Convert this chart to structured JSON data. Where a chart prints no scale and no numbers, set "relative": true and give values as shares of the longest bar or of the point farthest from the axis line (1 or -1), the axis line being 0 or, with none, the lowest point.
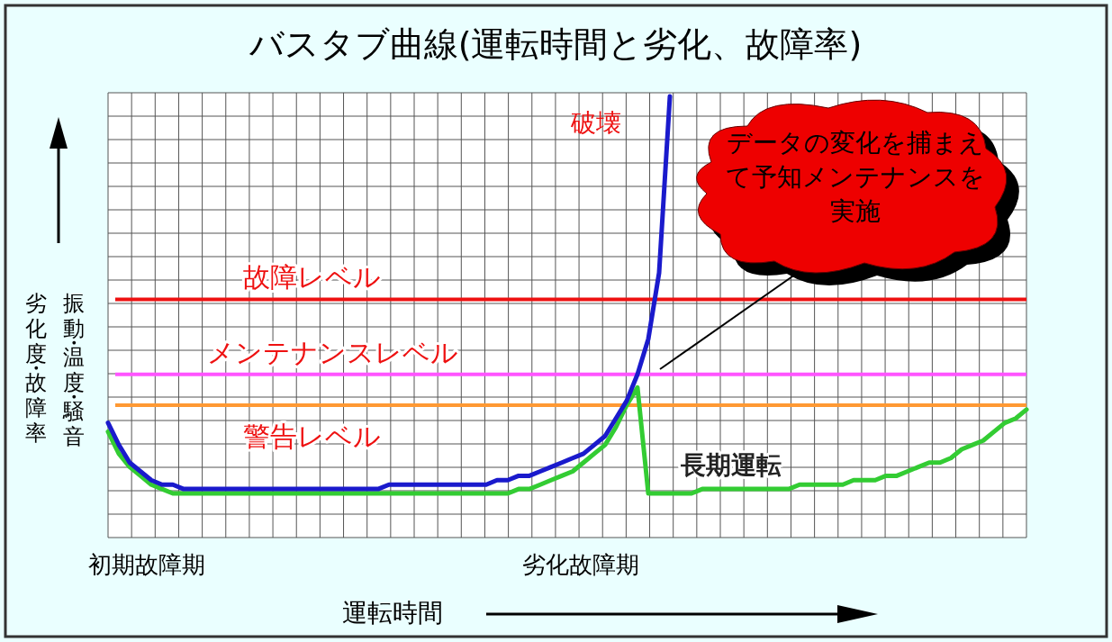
{
  "chart_data": {
    "type": "line",
    "relative": true,
    "title": "バスタブ曲線(運転時間と劣化、故障率)",
    "xlabel": "運転時間",
    "ylabel": "劣化度・故障率",
    "grid": true,
    "marker": "none",
    "line_style": "solid",
    "categories": [
      null,
      null,
      null,
      null,
      null,
      null,
      null,
      null,
      null,
      null,
      null,
      null,
      null,
      null,
      null,
      null,
      null,
      null,
      null,
      null,
      null,
      null,
      null,
      null,
      null,
      null,
      null,
      null,
      null,
      null,
      null,
      null,
      null,
      null,
      null,
      null,
      null,
      null,
      null,
      null,
      null,
      null,
      null,
      null,
      null,
      null,
      null,
      null,
      null,
      null,
      null,
      null,
      null,
      null,
      null,
      null,
      null,
      null,
      null,
      null,
      null,
      null,
      null,
      null,
      null,
      null,
      null,
      null,
      null,
      null,
      null,
      null,
      null,
      null,
      null,
      null,
      null,
      null,
      null,
      null,
      null,
      null,
      null,
      null,
      null,
      null
    ],
    "series": [
      {
        "color": "#1a1acc",
        "values": [
          0.26,
          0.21,
          0.17,
          0.15,
          0.13,
          0.12,
          0.12,
          0.11,
          0.11,
          0.11,
          0.11,
          0.11,
          0.11,
          0.11,
          0.11,
          0.11,
          0.11,
          0.11,
          0.11,
          0.11,
          0.11,
          0.11,
          0.11,
          0.11,
          0.11,
          0.11,
          0.12,
          0.12,
          0.12,
          0.12,
          0.12,
          0.12,
          0.12,
          0.12,
          0.12,
          0.12,
          0.13,
          0.13,
          0.14,
          0.14,
          0.15,
          0.16,
          0.17,
          0.18,
          0.19,
          0.21,
          0.23,
          0.27,
          0.31,
          0.37,
          0.45,
          0.6,
          1,
          null,
          null,
          null,
          null,
          null,
          null,
          null,
          null,
          null,
          null,
          null,
          null,
          null,
          null,
          null,
          null,
          null,
          null,
          null,
          null,
          null,
          null,
          null,
          null,
          null,
          null,
          null,
          null,
          null,
          null,
          null,
          null,
          null
        ]
      },
      {
        "name": "長期運転",
        "color": "#33cc33",
        "values": [
          0.24,
          0.19,
          0.16,
          0.14,
          0.12,
          0.11,
          0.1,
          0.1,
          0.1,
          0.1,
          0.1,
          0.1,
          0.1,
          0.1,
          0.1,
          0.1,
          0.1,
          0.1,
          0.1,
          0.1,
          0.1,
          0.1,
          0.1,
          0.1,
          0.1,
          0.1,
          0.1,
          0.1,
          0.1,
          0.1,
          0.1,
          0.1,
          0.1,
          0.1,
          0.1,
          0.1,
          0.1,
          0.1,
          0.11,
          0.11,
          0.12,
          0.13,
          0.14,
          0.15,
          0.17,
          0.19,
          0.21,
          0.25,
          0.3,
          0.34,
          0.1,
          0.1,
          0.1,
          0.1,
          0.1,
          0.11,
          0.11,
          0.11,
          0.11,
          0.11,
          0.11,
          0.11,
          0.11,
          0.11,
          0.12,
          0.12,
          0.12,
          0.12,
          0.12,
          0.13,
          0.13,
          0.13,
          0.14,
          0.14,
          0.15,
          0.16,
          0.17,
          0.17,
          0.18,
          0.2,
          0.21,
          0.22,
          0.24,
          0.26,
          0.27,
          0.29
        ]
      }
    ],
    "ref_lines": [
      {
        "axis": "y",
        "value": 0.54,
        "label": "故障レベル",
        "color": "#ee1111"
      },
      {
        "axis": "y",
        "value": 0.37,
        "label": "メンテナンスレベル",
        "color": "#ff55ff"
      },
      {
        "axis": "y",
        "value": 0.3,
        "label": "警告レベル",
        "color": "#ff9933"
      }
    ],
    "annotations": [
      "振動・温度・騒音",
      "破壊",
      "データの変化を捕まえて予知メンテナンスを実施",
      "初期故障期",
      "劣化故障期"
    ]
  }
}
